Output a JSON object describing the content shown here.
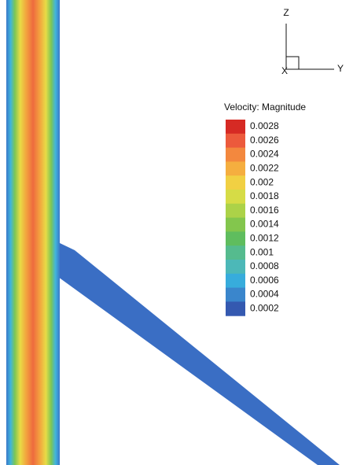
{
  "legend": {
    "title": "Velocity: Magnitude",
    "labels": [
      "0.0028",
      "0.0026",
      "0.0024",
      "0.0022",
      "0.002",
      "0.0018",
      "0.0016",
      "0.0014",
      "0.0012",
      "0.001",
      "0.0008",
      "0.0006",
      "0.0004",
      "0.0002"
    ],
    "colors": [
      "#d62a24",
      "#ec5a3c",
      "#f3883e",
      "#f5ae3f",
      "#f1d043",
      "#d6dc46",
      "#acd248",
      "#83c64d",
      "#5fbd5e",
      "#55bb8e",
      "#4cb8b8",
      "#37acdc",
      "#3a86cc",
      "#3459b0"
    ]
  },
  "triad": {
    "z": "Z",
    "y": "Y",
    "x": "X"
  }
}
